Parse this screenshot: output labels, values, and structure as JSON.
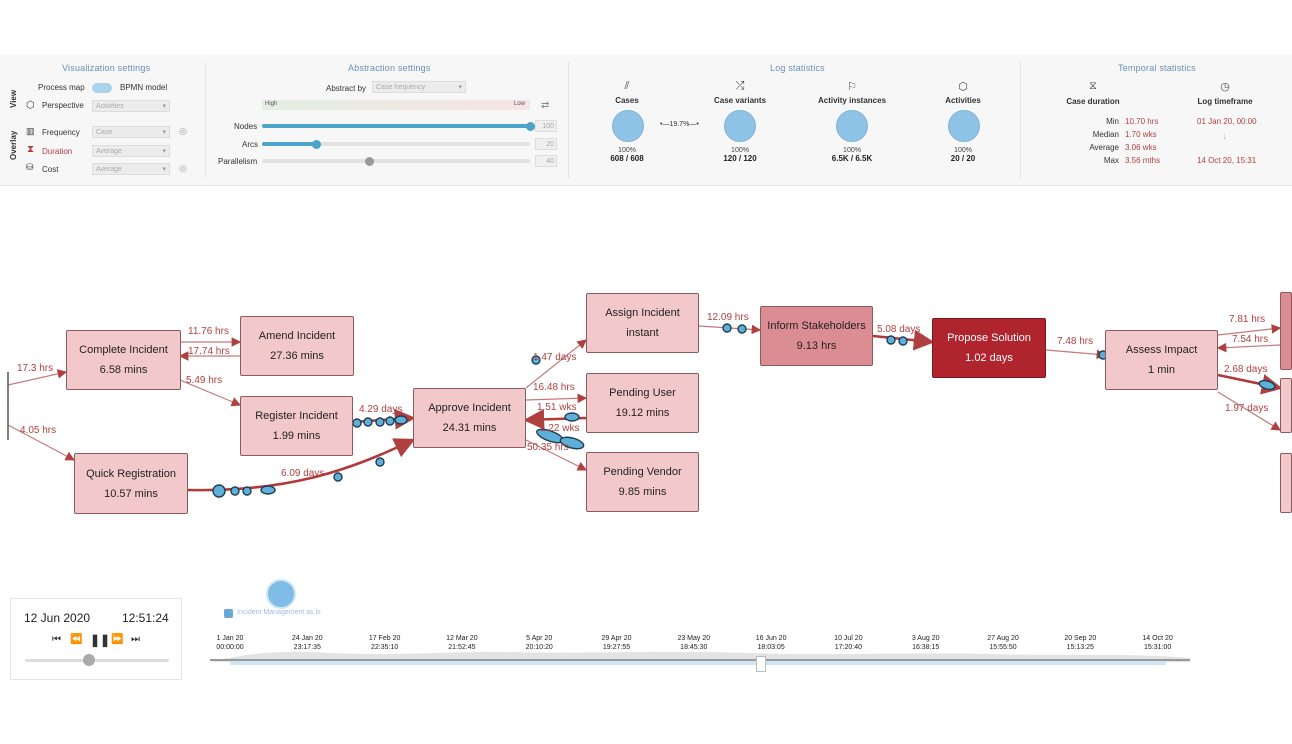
{
  "header": {
    "visualization_title": "Visualization settings",
    "abstraction_title": "Abstraction settings",
    "log_title": "Log statistics",
    "temporal_title": "Temporal statistics"
  },
  "viz": {
    "view_label": "View",
    "overlay_label": "Overlay",
    "process_map": "Process map",
    "bpmn_model": "BPMN model",
    "perspective_label": "Perspective",
    "perspective_value": "Activities",
    "frequency_label": "Frequency",
    "frequency_value": "Case",
    "duration_label": "Duration",
    "duration_value": "Average",
    "cost_label": "Cost",
    "cost_value": "Average"
  },
  "abstraction": {
    "abstract_by_label": "Abstract by",
    "abstract_by_value": "Case frequency",
    "high": "High",
    "low": "Low",
    "nodes_label": "Nodes",
    "nodes_value": "100",
    "nodes_level": 100,
    "arcs_label": "Arcs",
    "arcs_value": "20",
    "arcs_level": 20,
    "parallelism_label": "Parallelism",
    "parallelism_value": "40",
    "parallelism_level": 40
  },
  "log_stats": {
    "cases_label": "Cases",
    "cases_pct": "100%",
    "cases_value": "608 / 608",
    "link_pct": "19.7%",
    "variants_label": "Case variants",
    "variants_pct": "100%",
    "variants_value": "120 / 120",
    "instances_label": "Activity instances",
    "instances_pct": "100%",
    "instances_value": "6.5K / 6.5K",
    "activities_label": "Activities",
    "activities_pct": "100%",
    "activities_value": "20 / 20"
  },
  "temporal": {
    "case_duration_label": "Case duration",
    "log_timeframe_label": "Log timeframe",
    "min_label": "Min",
    "min_value": "10.70 hrs",
    "median_label": "Median",
    "median_value": "1.70 wks",
    "average_label": "Average",
    "average_value": "3.06 wks",
    "max_label": "Max",
    "max_value": "3.56 mths",
    "start": "01 Jan 20, 00:00",
    "end": "14 Oct 20, 15:31"
  },
  "nodes": [
    {
      "id": "complete",
      "title": "Complete Incident",
      "sub": "6.58 mins"
    },
    {
      "id": "amend",
      "title": "Amend Incident",
      "sub": "27.36 mins"
    },
    {
      "id": "register",
      "title": "Register Incident",
      "sub": "1.99 mins"
    },
    {
      "id": "quick",
      "title": "Quick Registration",
      "sub": "10.57 mins"
    },
    {
      "id": "approve",
      "title": "Approve Incident",
      "sub": "24.31 mins"
    },
    {
      "id": "assign",
      "title": "Assign Incident",
      "sub": "instant"
    },
    {
      "id": "puser",
      "title": "Pending User",
      "sub": "19.12 mins"
    },
    {
      "id": "pvendor",
      "title": "Pending Vendor",
      "sub": "9.85 mins"
    },
    {
      "id": "inform",
      "title": "Inform Stakeholders",
      "sub": "9.13 hrs"
    },
    {
      "id": "propose",
      "title": "Propose Solution",
      "sub": "1.02 days"
    },
    {
      "id": "assess",
      "title": "Assess Impact",
      "sub": "1 min"
    }
  ],
  "edge_labels": {
    "e1": "17.3 hrs",
    "e2": "4.05 hrs",
    "e3": "11.76 hrs",
    "e4": "17.74 hrs",
    "e5": "5.49 hrs",
    "e6": "4.29 days",
    "e7": "6.09 days",
    "e8": "1.47 days",
    "e9": "16.48 hrs",
    "e10": "1.51 wks",
    "e11": "1.22 wks",
    "e12": "50.35 hrs",
    "e13": "12.09 hrs",
    "e14": "5.08 days",
    "e15": "7.48 hrs",
    "e16": "7.81 hrs",
    "e17": "7.54 hrs",
    "e18": "2.68 days",
    "e19": "1.97 days"
  },
  "player": {
    "date": "12 Jun 2020",
    "time": "12:51:24",
    "log_name": "Incident Management as is"
  },
  "timeline": [
    {
      "d": "1 Jan 20",
      "t": "00:00:00"
    },
    {
      "d": "24 Jan 20",
      "t": "23:17:35"
    },
    {
      "d": "17 Feb 20",
      "t": "22:35:10"
    },
    {
      "d": "12 Mar 20",
      "t": "21:52:45"
    },
    {
      "d": "5 Apr 20",
      "t": "20:10:20"
    },
    {
      "d": "29 Apr 20",
      "t": "19:27:55"
    },
    {
      "d": "23 May 20",
      "t": "18:45:30"
    },
    {
      "d": "16 Jun 20",
      "t": "18:03:05"
    },
    {
      "d": "10 Jul 20",
      "t": "17:20:40"
    },
    {
      "d": "3 Aug 20",
      "t": "16:38:15"
    },
    {
      "d": "27 Aug 20",
      "t": "15:55:50"
    },
    {
      "d": "20 Sep 20",
      "t": "15:13:25"
    },
    {
      "d": "14 Oct 20",
      "t": "15:31:00"
    }
  ],
  "colors": {
    "node_light": "#f3c8cb",
    "node_mid": "#dc8c93",
    "node_dark": "#b0242d",
    "edge": "#b04040",
    "token": "#5fb0d8",
    "accent": "#4aa3c9"
  }
}
